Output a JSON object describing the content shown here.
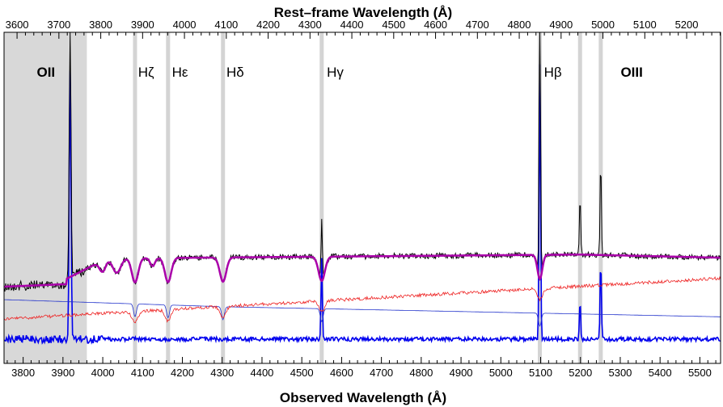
{
  "chart_data": {
    "type": "line",
    "title": "",
    "top_axis": {
      "label": "Rest–frame Wavelength (Å)",
      "ticks": [
        "3600",
        "3700",
        "3800",
        "3900",
        "4000",
        "4100",
        "4200",
        "4300",
        "4400",
        "4500",
        "4600",
        "4700",
        "4800",
        "4900",
        "5000",
        "5100",
        "5200"
      ],
      "range": [
        3600,
        5280
      ]
    },
    "bottom_axis": {
      "label": "Observed Wavelength (Å)",
      "ticks": [
        "3800",
        "3900",
        "4000",
        "4100",
        "4200",
        "4300",
        "4400",
        "4500",
        "4600",
        "4700",
        "4800",
        "4900",
        "5000",
        "5100",
        "5200",
        "5300",
        "5400",
        "5500"
      ],
      "range": [
        3752,
        5552
      ]
    },
    "redshift_factor": 1.0513,
    "shaded_region_observed": [
      3752,
      3960
    ],
    "line_markers_observed": [
      4081,
      4164,
      4302,
      4550,
      5098,
      5199,
      5251
    ],
    "line_labels": [
      {
        "text": "OII",
        "rest": 3727,
        "bold": true
      },
      {
        "text": "Hζ",
        "rest": 3889,
        "bold": false
      },
      {
        "text": "Hε",
        "rest": 3970,
        "bold": false
      },
      {
        "text": "Hδ",
        "rest": 4102,
        "bold": false
      },
      {
        "text": "Hγ",
        "rest": 4341,
        "bold": false
      },
      {
        "text": "Hβ",
        "rest": 4861,
        "bold": false
      },
      {
        "text": "OIII",
        "rest": 5007,
        "bold": true
      }
    ],
    "series": [
      {
        "color": "#000000",
        "description_visible": false
      },
      {
        "color": "#aa00aa",
        "description_visible": false
      },
      {
        "color": "#ee2222",
        "description_visible": false
      },
      {
        "color": "#2233cc",
        "description_visible": false
      },
      {
        "color": "#0000ee",
        "description_visible": false
      }
    ]
  }
}
